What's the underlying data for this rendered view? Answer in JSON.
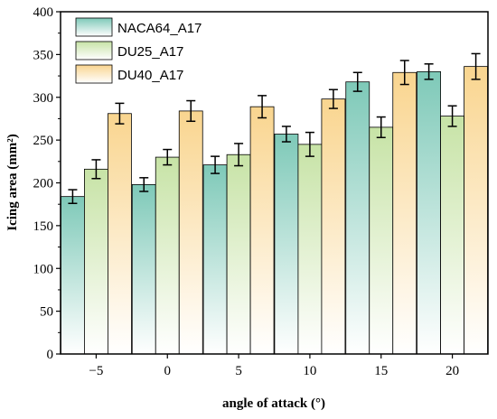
{
  "chart_data": {
    "type": "bar",
    "categories": [
      "−5",
      "0",
      "5",
      "10",
      "15",
      "20"
    ],
    "series": [
      {
        "name": "NACA64_A17",
        "values": [
          184,
          198,
          221,
          257,
          318,
          330
        ],
        "errors": [
          8,
          8,
          10,
          9,
          11,
          9
        ],
        "color": "#7ec9b8"
      },
      {
        "name": "DU25_A17",
        "values": [
          216,
          230,
          233,
          245,
          265,
          278
        ],
        "errors": [
          11,
          9,
          13,
          14,
          12,
          12
        ],
        "color": "#c7e3a6"
      },
      {
        "name": "DU40_A17",
        "values": [
          281,
          284,
          289,
          298,
          329,
          336
        ],
        "errors": [
          12,
          12,
          13,
          11,
          14,
          15
        ],
        "color": "#f9d58f"
      }
    ],
    "xlabel": "angle of attack (°)",
    "ylabel": "Icing area (mm²)",
    "ylim": [
      0,
      400
    ],
    "yticks": [
      "0",
      "50",
      "100",
      "150",
      "200",
      "250",
      "300",
      "350",
      "400"
    ],
    "legend": "top-left",
    "grid": false
  }
}
